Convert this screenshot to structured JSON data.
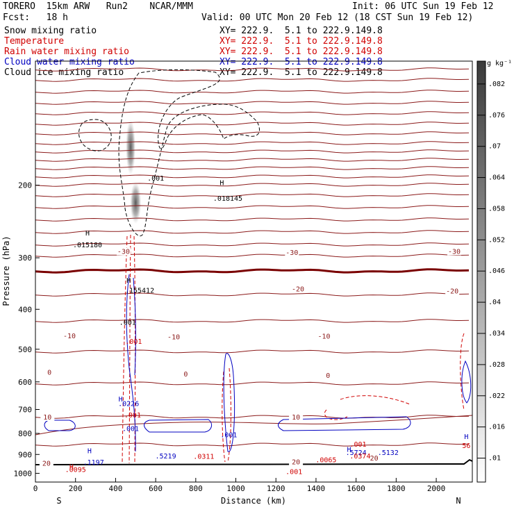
{
  "header": {
    "model": "TORERO  15km ARW   Run2    NCAR/MMM",
    "init": "Init: 06 UTC Sun 19 Feb 12",
    "fcst": "Fcst:   18 h",
    "valid": "Valid: 00 UTC Mon 20 Feb 12 (18 CST Sun 19 Feb 12)"
  },
  "legend": [
    {
      "label": "Snow mixing ratio",
      "xy": "XY= 222.9.  5.1 to 222.9.149.8",
      "color": "#000000"
    },
    {
      "label": "Temperature",
      "xy": "XY= 222.9.  5.1 to 222.9.149.8",
      "color": "#d00000"
    },
    {
      "label": "Rain water mixing ratio",
      "xy": "XY= 222.9.  5.1 to 222.9.149.8",
      "color": "#d00000"
    },
    {
      "label": "Cloud water mixing ratio",
      "xy": "XY= 222.9.  5.1 to 222.9.149.8",
      "color": "#0000c0"
    },
    {
      "label": "Cloud ice mixing ratio",
      "xy": "XY= 222.9.  5.1 to 222.9.149.8",
      "color": "#000000"
    }
  ],
  "chart_data": {
    "type": "cross-section contour",
    "xlabel": "Distance (km)",
    "ylabel": "Pressure (hPa)",
    "x_ticks": [
      0,
      200,
      400,
      600,
      800,
      1000,
      1200,
      1400,
      1600,
      1800,
      2000
    ],
    "y_ticks": [
      200,
      300,
      400,
      500,
      600,
      700,
      800,
      900,
      1000
    ],
    "xlim": [
      0,
      2180
    ],
    "ylim": [
      100,
      1050
    ],
    "y_scale": "log",
    "left_end": "S",
    "right_end": "N",
    "colorbar": {
      "unit": "g kg⁻¹",
      "ticks": [
        ".01",
        ".016",
        ".022",
        ".028",
        ".034",
        ".04",
        ".046",
        ".052",
        ".058",
        ".064",
        ".07",
        ".076",
        ".082"
      ]
    },
    "temperature_labels": [
      {
        "text": "-30",
        "x": 440,
        "p": 290
      },
      {
        "text": "-30",
        "x": 1280,
        "p": 292
      },
      {
        "text": "-30",
        "x": 2090,
        "p": 290
      },
      {
        "text": "-20",
        "x": 1310,
        "p": 358
      },
      {
        "text": "-20",
        "x": 2080,
        "p": 362
      },
      {
        "text": "-10",
        "x": 170,
        "p": 465
      },
      {
        "text": "-10",
        "x": 690,
        "p": 468
      },
      {
        "text": "-10",
        "x": 1440,
        "p": 466
      },
      {
        "text": "0",
        "x": 70,
        "p": 570
      },
      {
        "text": "0",
        "x": 750,
        "p": 575
      },
      {
        "text": "0",
        "x": 1460,
        "p": 580
      },
      {
        "text": "10",
        "x": 60,
        "p": 732
      },
      {
        "text": "10",
        "x": 1300,
        "p": 732
      },
      {
        "text": "20",
        "x": 55,
        "p": 948
      },
      {
        "text": "20",
        "x": 1300,
        "p": 940
      },
      {
        "text": "20",
        "x": 1690,
        "p": 920
      }
    ],
    "annotations": [
      {
        "text": "H",
        "x": 260,
        "p": 265,
        "color": "#000000"
      },
      {
        "text": ".015180",
        "x": 260,
        "p": 283,
        "color": "#000000"
      },
      {
        "text": ".001",
        "x": 600,
        "p": 195,
        "color": "#000000"
      },
      {
        "text": "H",
        "x": 930,
        "p": 200,
        "color": "#000000"
      },
      {
        "text": ".018145",
        "x": 960,
        "p": 218,
        "color": "#000000"
      },
      {
        "text": "H",
        "x": 465,
        "p": 345,
        "color": "#000000"
      },
      {
        "text": ".155412",
        "x": 520,
        "p": 365,
        "color": "#000000"
      },
      {
        "text": ".001",
        "x": 460,
        "p": 436,
        "color": "#000000"
      },
      {
        "text": ".001",
        "x": 490,
        "p": 485,
        "color": "#d00000"
      },
      {
        "text": "H",
        "x": 425,
        "p": 670,
        "color": "#0000c0"
      },
      {
        "text": ".0226",
        "x": 465,
        "p": 686,
        "color": "#0000c0"
      },
      {
        "text": ".001",
        "x": 485,
        "p": 732,
        "color": "#d00000"
      },
      {
        "text": ".001",
        "x": 475,
        "p": 790,
        "color": "#0000c0"
      },
      {
        "text": ".001",
        "x": 965,
        "p": 818,
        "color": "#0000c0"
      },
      {
        "text": "H",
        "x": 270,
        "p": 893,
        "color": "#0000c0"
      },
      {
        "text": ".1197",
        "x": 290,
        "p": 953,
        "color": "#0000c0"
      },
      {
        "text": ".5219",
        "x": 650,
        "p": 920,
        "color": "#0000c0"
      },
      {
        "text": ".0311",
        "x": 840,
        "p": 922,
        "color": "#d00000"
      },
      {
        "text": "H",
        "x": 180,
        "p": 977,
        "color": "#d00000"
      },
      {
        "text": ".0095",
        "x": 200,
        "p": 992,
        "color": "#d00000"
      },
      {
        "text": ".001",
        "x": 1610,
        "p": 862,
        "color": "#d00000"
      },
      {
        "text": "H",
        "x": 1565,
        "p": 887,
        "color": "#0000c0"
      },
      {
        "text": ".5724",
        "x": 1600,
        "p": 902,
        "color": "#0000c0"
      },
      {
        "text": ".5132",
        "x": 1760,
        "p": 903,
        "color": "#0000c0"
      },
      {
        "text": ".0374",
        "x": 1620,
        "p": 920,
        "color": "#d00000"
      },
      {
        "text": ".0065",
        "x": 1450,
        "p": 940,
        "color": "#d00000"
      },
      {
        "text": ".001",
        "x": 1290,
        "p": 1005,
        "color": "#d00000"
      },
      {
        "text": "H",
        "x": 2150,
        "p": 825,
        "color": "#0000c0"
      },
      {
        "text": "56",
        "x": 2150,
        "p": 868,
        "color": "#d00000"
      }
    ]
  }
}
